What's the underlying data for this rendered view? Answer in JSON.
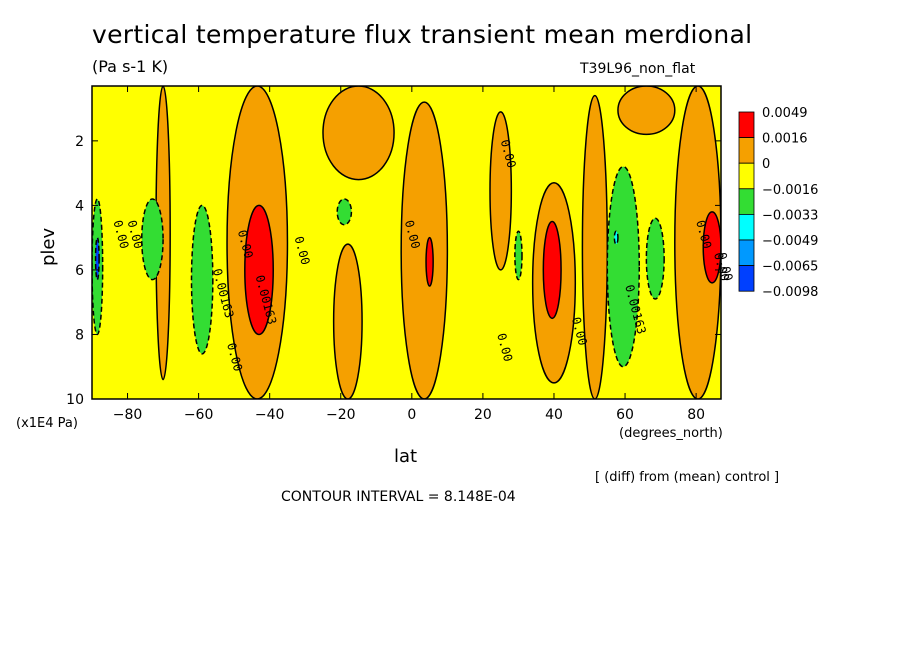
{
  "chart_data": {
    "type": "heatmap",
    "title": "vertical temperature flux transient mean merdional",
    "units": "(Pa s-1 K)",
    "run_label": "T39L96_non_flat",
    "xlabel": "lat",
    "xunits": "(degrees_north)",
    "ylabel": "plev",
    "yunits": "(x1E4 Pa)",
    "xlim": [
      -90,
      87
    ],
    "ylim": [
      10,
      0.3
    ],
    "xticks": [
      -80,
      -60,
      -40,
      -20,
      0,
      20,
      40,
      60,
      80
    ],
    "yticks": [
      2,
      4,
      6,
      8,
      10
    ],
    "contour_interval_text": "CONTOUR INTERVAL = 8.148E-04",
    "note": "[ (diff) from (mean) control ]",
    "legend": {
      "labels": [
        "0.0049",
        "0.0016",
        "0",
        "-0.0016",
        "-0.0033",
        "-0.0049",
        "-0.0065",
        "-0.0098"
      ],
      "colors": [
        "#ff0000",
        "#f5a000",
        "#ffff00",
        "#33dd33",
        "#00ffff",
        "#0099ff",
        "#0040ff"
      ]
    },
    "contour_labels": [
      "0.00",
      "0.00",
      "0.00",
      "0.00163",
      "0.00",
      "0.00163",
      "0.00",
      "0.00",
      "0.00",
      "0.00",
      "0.00",
      "0.00163",
      "0.00",
      "0.00",
      "0.00"
    ],
    "regions": [
      {
        "level": "pos",
        "lat": [
          -72,
          -68
        ],
        "plev": [
          0.3,
          9.4
        ]
      },
      {
        "level": "pos",
        "lat": [
          -52,
          -35
        ],
        "plev": [
          0.3,
          10
        ]
      },
      {
        "level": "pos",
        "lat": [
          -25,
          -5
        ],
        "plev": [
          0.3,
          3.2
        ]
      },
      {
        "level": "pos",
        "lat": [
          -22,
          -14
        ],
        "plev": [
          5.2,
          10
        ]
      },
      {
        "level": "pos",
        "lat": [
          -3,
          10
        ],
        "plev": [
          0.8,
          10
        ]
      },
      {
        "level": "pos",
        "lat": [
          22,
          28
        ],
        "plev": [
          1.1,
          6
        ]
      },
      {
        "level": "pos",
        "lat": [
          34,
          46
        ],
        "plev": [
          3.3,
          9.5
        ]
      },
      {
        "level": "pos",
        "lat": [
          48,
          55
        ],
        "plev": [
          0.6,
          10
        ]
      },
      {
        "level": "pos",
        "lat": [
          58,
          74
        ],
        "plev": [
          0.3,
          1.8
        ]
      },
      {
        "level": "pos",
        "lat": [
          74,
          87
        ],
        "plev": [
          0.3,
          10
        ]
      },
      {
        "level": "strong",
        "lat": [
          -47,
          -39
        ],
        "plev": [
          4.0,
          8.0
        ]
      },
      {
        "level": "strong",
        "lat": [
          4,
          6
        ],
        "plev": [
          5.0,
          6.5
        ]
      },
      {
        "level": "strong",
        "lat": [
          37,
          42
        ],
        "plev": [
          4.5,
          7.5
        ]
      },
      {
        "level": "strong",
        "lat": [
          82,
          87
        ],
        "plev": [
          4.2,
          6.4
        ]
      },
      {
        "level": "neg",
        "lat": [
          -76,
          -70
        ],
        "plev": [
          3.8,
          6.3
        ]
      },
      {
        "level": "neg",
        "lat": [
          -62,
          -56
        ],
        "plev": [
          4.0,
          8.6
        ]
      },
      {
        "level": "neg",
        "lat": [
          -21,
          -17
        ],
        "plev": [
          3.8,
          4.6
        ]
      },
      {
        "level": "neg",
        "lat": [
          29,
          31
        ],
        "plev": [
          4.8,
          6.3
        ]
      },
      {
        "level": "neg",
        "lat": [
          55,
          64
        ],
        "plev": [
          2.8,
          9.0
        ]
      },
      {
        "level": "neg",
        "lat": [
          66,
          71
        ],
        "plev": [
          4.4,
          6.9
        ]
      },
      {
        "level": "neg",
        "lat": [
          -90,
          -87
        ],
        "plev": [
          3.8,
          8.0
        ]
      },
      {
        "level": "neg2",
        "lat": [
          57,
          58
        ],
        "plev": [
          4.8,
          5.2
        ]
      },
      {
        "level": "neg4",
        "lat": [
          -89,
          -88
        ],
        "plev": [
          5.0,
          6.3
        ]
      }
    ]
  }
}
